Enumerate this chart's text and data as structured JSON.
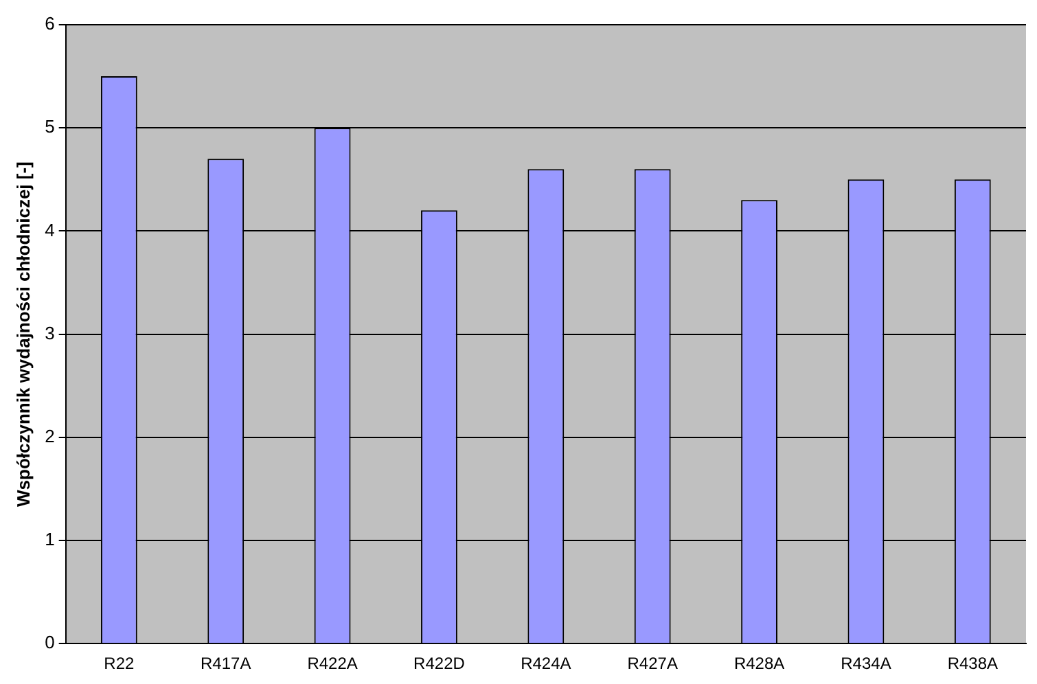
{
  "chart_data": {
    "type": "bar",
    "ylabel": "Współczynnik wydajności chłodniczej [-]",
    "categories": [
      "R22",
      "R417A",
      "R422A",
      "R422D",
      "R424A",
      "R427A",
      "R428A",
      "R434A",
      "R438A"
    ],
    "values": [
      5.5,
      4.7,
      5.0,
      4.2,
      4.6,
      4.6,
      4.3,
      4.5,
      4.5
    ],
    "color": "#9999ff",
    "ylim": [
      0,
      6
    ],
    "yticks": [
      0,
      1,
      2,
      3,
      4,
      5,
      6
    ],
    "grid": "y",
    "legend": false
  }
}
